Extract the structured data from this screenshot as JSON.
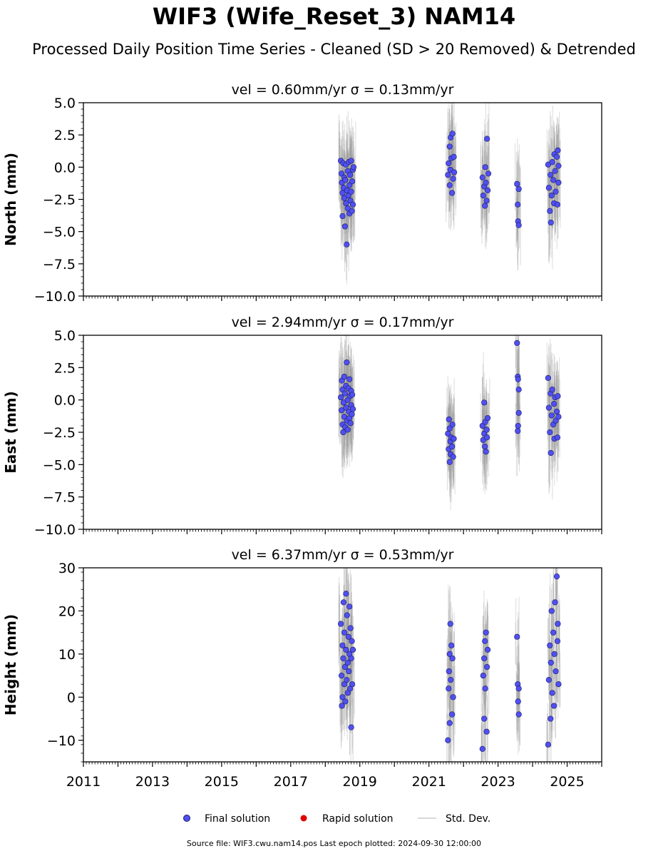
{
  "title": "WIF3 (Wife_Reset_3) NAM14",
  "subtitle": "Processed Daily Position Time Series - Cleaned (SD > 20 Removed) & Detrended",
  "source_note": "Source file: WIF3.cwu.nam14.pos  Last epoch plotted: 2024-09-30 12:00:00",
  "colors": {
    "final": "#5050f0",
    "rapid": "#e00000",
    "stddev": "#9a9a9a",
    "edge": "#1a1a66"
  },
  "legend": {
    "final": "Final solution",
    "rapid": "Rapid solution",
    "stddev": "Std. Dev."
  },
  "chart_data": [
    {
      "type": "scatter",
      "ylabel": "North (mm)",
      "panel_title": "vel = 0.60mm/yr   σ = 0.13mm/yr",
      "xlim": [
        2011,
        2026
      ],
      "ylim": [
        -10,
        5
      ],
      "yticks": [
        5.0,
        2.5,
        0.0,
        -2.5,
        -5.0,
        -7.5,
        -10.0
      ],
      "yticklabels": [
        "5.0",
        "2.5",
        "0.0",
        "−2.5",
        "−5.0",
        "−7.5",
        "−10.0"
      ],
      "xticks": [
        2011,
        2013,
        2015,
        2017,
        2019,
        2021,
        2023,
        2025
      ],
      "xticklabels": [],
      "points": [
        [
          2018.45,
          0.5
        ],
        [
          2018.47,
          -0.5
        ],
        [
          2018.48,
          -1.2
        ],
        [
          2018.5,
          -2.0
        ],
        [
          2018.5,
          -3.8
        ],
        [
          2018.52,
          0.3
        ],
        [
          2018.53,
          -1.6
        ],
        [
          2018.55,
          -2.4
        ],
        [
          2018.55,
          -0.8
        ],
        [
          2018.57,
          -4.6
        ],
        [
          2018.58,
          -1.0
        ],
        [
          2018.6,
          -2.8
        ],
        [
          2018.6,
          0.2
        ],
        [
          2018.62,
          -6.0
        ],
        [
          2018.63,
          -1.8
        ],
        [
          2018.65,
          -3.2
        ],
        [
          2018.65,
          -0.3
        ],
        [
          2018.67,
          -2.2
        ],
        [
          2018.68,
          0.4
        ],
        [
          2018.7,
          -1.4
        ],
        [
          2018.7,
          -3.6
        ],
        [
          2018.72,
          -0.6
        ],
        [
          2018.73,
          -2.6
        ],
        [
          2018.75,
          0.5
        ],
        [
          2018.75,
          -1.9
        ],
        [
          2018.77,
          -3.4
        ],
        [
          2018.78,
          -1.1
        ],
        [
          2018.8,
          -0.2
        ],
        [
          2018.8,
          -2.9
        ],
        [
          2018.82,
          0.0
        ],
        [
          2021.55,
          -0.6
        ],
        [
          2021.57,
          0.3
        ],
        [
          2021.6,
          -1.4
        ],
        [
          2021.6,
          1.6
        ],
        [
          2021.62,
          -0.2
        ],
        [
          2021.63,
          2.3
        ],
        [
          2021.65,
          0.7
        ],
        [
          2021.67,
          -2.0
        ],
        [
          2021.68,
          2.6
        ],
        [
          2021.7,
          -0.9
        ],
        [
          2021.72,
          0.8
        ],
        [
          2021.73,
          -0.4
        ],
        [
          2022.55,
          -0.8
        ],
        [
          2022.57,
          -2.2
        ],
        [
          2022.6,
          -1.5
        ],
        [
          2022.62,
          -3.0
        ],
        [
          2022.63,
          0.0
        ],
        [
          2022.65,
          -1.2
        ],
        [
          2022.67,
          -2.6
        ],
        [
          2022.68,
          2.2
        ],
        [
          2022.7,
          -1.8
        ],
        [
          2022.72,
          -0.5
        ],
        [
          2023.55,
          -1.3
        ],
        [
          2023.57,
          -2.9
        ],
        [
          2023.58,
          -4.2
        ],
        [
          2023.6,
          -1.7
        ],
        [
          2023.6,
          -4.5
        ],
        [
          2024.45,
          0.2
        ],
        [
          2024.47,
          -1.6
        ],
        [
          2024.5,
          -3.4
        ],
        [
          2024.52,
          -0.6
        ],
        [
          2024.53,
          -4.3
        ],
        [
          2024.55,
          -2.2
        ],
        [
          2024.57,
          0.4
        ],
        [
          2024.6,
          -1.0
        ],
        [
          2024.62,
          -2.8
        ],
        [
          2024.63,
          1.0
        ],
        [
          2024.65,
          -0.3
        ],
        [
          2024.67,
          -1.9
        ],
        [
          2024.7,
          0.8
        ],
        [
          2024.72,
          -2.9
        ],
        [
          2024.73,
          1.3
        ],
        [
          2024.75,
          0.1
        ],
        [
          2024.75,
          -1.2
        ]
      ]
    },
    {
      "type": "scatter",
      "ylabel": "East (mm)",
      "panel_title": "vel = 2.94mm/yr   σ = 0.17mm/yr",
      "xlim": [
        2011,
        2026
      ],
      "ylim": [
        -10,
        5
      ],
      "yticks": [
        5.0,
        2.5,
        0.0,
        -2.5,
        -5.0,
        -7.5,
        -10.0
      ],
      "yticklabels": [
        "5.0",
        "2.5",
        "0.0",
        "−2.5",
        "−5.0",
        "−7.5",
        "−10.0"
      ],
      "xticks": [
        2011,
        2013,
        2015,
        2017,
        2019,
        2021,
        2023,
        2025
      ],
      "xticklabels": [],
      "points": [
        [
          2018.45,
          0.2
        ],
        [
          2018.47,
          -0.8
        ],
        [
          2018.48,
          1.5
        ],
        [
          2018.5,
          -1.9
        ],
        [
          2018.5,
          0.8
        ],
        [
          2018.52,
          -2.5
        ],
        [
          2018.53,
          -0.2
        ],
        [
          2018.55,
          1.8
        ],
        [
          2018.55,
          -1.3
        ],
        [
          2018.57,
          0.5
        ],
        [
          2018.58,
          -2.1
        ],
        [
          2018.6,
          -0.6
        ],
        [
          2018.6,
          1.1
        ],
        [
          2018.62,
          2.9
        ],
        [
          2018.63,
          -1.6
        ],
        [
          2018.65,
          0.0
        ],
        [
          2018.65,
          -2.3
        ],
        [
          2018.67,
          0.9
        ],
        [
          2018.68,
          -0.9
        ],
        [
          2018.7,
          1.6
        ],
        [
          2018.7,
          -1.4
        ],
        [
          2018.72,
          0.3
        ],
        [
          2018.73,
          -1.8
        ],
        [
          2018.75,
          0.7
        ],
        [
          2018.75,
          -0.4
        ],
        [
          2018.77,
          -1.1
        ],
        [
          2018.78,
          0.4
        ],
        [
          2018.8,
          -0.7
        ],
        [
          2021.55,
          -2.6
        ],
        [
          2021.57,
          -3.8
        ],
        [
          2021.58,
          -1.5
        ],
        [
          2021.6,
          -4.8
        ],
        [
          2021.6,
          -2.2
        ],
        [
          2021.62,
          -3.2
        ],
        [
          2021.63,
          -4.2
        ],
        [
          2021.65,
          -2.9
        ],
        [
          2021.67,
          -3.6
        ],
        [
          2021.68,
          -1.9
        ],
        [
          2021.7,
          -4.4
        ],
        [
          2021.72,
          -3.0
        ],
        [
          2022.55,
          -2.0
        ],
        [
          2022.57,
          -3.1
        ],
        [
          2022.6,
          -2.6
        ],
        [
          2022.6,
          -0.2
        ],
        [
          2022.62,
          -3.6
        ],
        [
          2022.63,
          -1.7
        ],
        [
          2022.65,
          -4.0
        ],
        [
          2022.67,
          -2.3
        ],
        [
          2022.68,
          -2.9
        ],
        [
          2022.7,
          -1.4
        ],
        [
          2023.55,
          4.4
        ],
        [
          2023.57,
          1.8
        ],
        [
          2023.58,
          1.6
        ],
        [
          2023.6,
          0.8
        ],
        [
          2023.6,
          -1.0
        ],
        [
          2023.58,
          -2.0
        ],
        [
          2023.57,
          -2.4
        ],
        [
          2024.45,
          1.7
        ],
        [
          2024.47,
          -0.6
        ],
        [
          2024.5,
          -2.5
        ],
        [
          2024.52,
          0.5
        ],
        [
          2024.53,
          -4.1
        ],
        [
          2024.55,
          -1.2
        ],
        [
          2024.57,
          0.8
        ],
        [
          2024.6,
          -1.9
        ],
        [
          2024.62,
          -0.3
        ],
        [
          2024.63,
          -3.0
        ],
        [
          2024.65,
          0.2
        ],
        [
          2024.67,
          -1.6
        ],
        [
          2024.7,
          -0.9
        ],
        [
          2024.72,
          -2.9
        ],
        [
          2024.73,
          0.3
        ],
        [
          2024.75,
          -1.3
        ]
      ]
    },
    {
      "type": "scatter",
      "ylabel": "Height (mm)",
      "panel_title": "vel = 6.37mm/yr   σ = 0.53mm/yr",
      "xlim": [
        2011,
        2026
      ],
      "ylim": [
        -15,
        30
      ],
      "yticks": [
        30,
        20,
        10,
        0,
        -10
      ],
      "yticklabels": [
        "30",
        "20",
        "10",
        "0",
        "−10"
      ],
      "xticks": [
        2011,
        2013,
        2015,
        2017,
        2019,
        2021,
        2023,
        2025
      ],
      "xticklabels": [
        "2011",
        "2013",
        "2015",
        "2017",
        "2019",
        "2021",
        "2023",
        "2025"
      ],
      "points": [
        [
          2018.45,
          17
        ],
        [
          2018.47,
          5
        ],
        [
          2018.48,
          -2
        ],
        [
          2018.5,
          12
        ],
        [
          2018.5,
          0
        ],
        [
          2018.52,
          9
        ],
        [
          2018.53,
          22
        ],
        [
          2018.55,
          3
        ],
        [
          2018.55,
          15
        ],
        [
          2018.57,
          7
        ],
        [
          2018.58,
          -1
        ],
        [
          2018.6,
          24
        ],
        [
          2018.6,
          11
        ],
        [
          2018.62,
          4
        ],
        [
          2018.63,
          19
        ],
        [
          2018.65,
          8
        ],
        [
          2018.65,
          1
        ],
        [
          2018.67,
          14
        ],
        [
          2018.68,
          6
        ],
        [
          2018.7,
          21
        ],
        [
          2018.7,
          10
        ],
        [
          2018.72,
          2
        ],
        [
          2018.73,
          16
        ],
        [
          2018.75,
          9
        ],
        [
          2018.75,
          -7
        ],
        [
          2018.77,
          13
        ],
        [
          2018.78,
          3
        ],
        [
          2018.8,
          11
        ],
        [
          2021.55,
          -10
        ],
        [
          2021.57,
          2
        ],
        [
          2021.58,
          6
        ],
        [
          2021.6,
          -6
        ],
        [
          2021.6,
          10
        ],
        [
          2021.62,
          17
        ],
        [
          2021.63,
          4
        ],
        [
          2021.65,
          12
        ],
        [
          2021.67,
          -4
        ],
        [
          2021.68,
          9
        ],
        [
          2021.7,
          0
        ],
        [
          2022.55,
          -12
        ],
        [
          2022.57,
          5
        ],
        [
          2022.6,
          9
        ],
        [
          2022.6,
          -5
        ],
        [
          2022.62,
          13
        ],
        [
          2022.63,
          2
        ],
        [
          2022.65,
          15
        ],
        [
          2022.67,
          -8
        ],
        [
          2022.68,
          7
        ],
        [
          2022.7,
          11
        ],
        [
          2023.55,
          14
        ],
        [
          2023.57,
          3
        ],
        [
          2023.58,
          -1
        ],
        [
          2023.6,
          -4
        ],
        [
          2023.6,
          2
        ],
        [
          2024.45,
          -11
        ],
        [
          2024.47,
          4
        ],
        [
          2024.5,
          12
        ],
        [
          2024.52,
          -5
        ],
        [
          2024.53,
          8
        ],
        [
          2024.55,
          20
        ],
        [
          2024.57,
          1
        ],
        [
          2024.6,
          15
        ],
        [
          2024.62,
          -2
        ],
        [
          2024.63,
          10
        ],
        [
          2024.65,
          22
        ],
        [
          2024.67,
          6
        ],
        [
          2024.7,
          28
        ],
        [
          2024.72,
          13
        ],
        [
          2024.73,
          17
        ],
        [
          2024.75,
          3
        ]
      ]
    }
  ]
}
